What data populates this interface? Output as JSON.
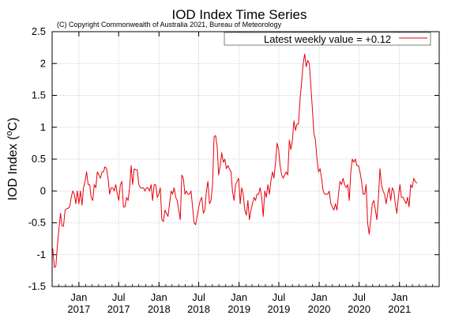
{
  "chart_data": {
    "type": "line",
    "title": "IOD Index Time Series",
    "subtitle": "(C) Copyright Commonwealth of Australia 2021, Bureau of Meteorology",
    "ylabel_main": "IOD Index (",
    "ylabel_sup": "o",
    "ylabel_unit": "C)",
    "xlabel": "",
    "x_range": [
      "2016-09-01",
      "2021-07-01"
    ],
    "ylim": [
      -1.5,
      2.5
    ],
    "y_ticks": [
      -1.5,
      -1,
      -0.5,
      0,
      0.5,
      1,
      1.5,
      2,
      2.5
    ],
    "y_tick_labels": [
      "-1.5",
      "-1",
      "-0.5",
      "0",
      "0.5",
      "1",
      "1.5",
      "2",
      "2.5"
    ],
    "x_ticks": [
      {
        "date": "2017-01-01",
        "month": "Jan",
        "year": "2017"
      },
      {
        "date": "2017-07-01",
        "month": "Jul",
        "year": "2017"
      },
      {
        "date": "2018-01-01",
        "month": "Jan",
        "year": "2018"
      },
      {
        "date": "2018-07-01",
        "month": "Jul",
        "year": "2018"
      },
      {
        "date": "2019-01-01",
        "month": "Jan",
        "year": "2019"
      },
      {
        "date": "2019-07-01",
        "month": "Jul",
        "year": "2019"
      },
      {
        "date": "2020-01-01",
        "month": "Jan",
        "year": "2020"
      },
      {
        "date": "2020-07-01",
        "month": "Jul",
        "year": "2020"
      },
      {
        "date": "2021-01-01",
        "month": "Jan",
        "year": "2021"
      }
    ],
    "grid": true,
    "legend_position": "top-right",
    "legend_label": "Latest weekly value = +0.12",
    "line_color": "#e8000b",
    "series": [
      {
        "values": [
          [
            "2016-09-04",
            -0.9
          ],
          [
            "2016-09-11",
            -1.2
          ],
          [
            "2016-09-18",
            -1.18
          ],
          [
            "2016-09-25",
            -0.85
          ],
          [
            "2016-10-02",
            -0.6
          ],
          [
            "2016-10-09",
            -0.35
          ],
          [
            "2016-10-16",
            -0.55
          ],
          [
            "2016-10-23",
            -0.55
          ],
          [
            "2016-10-30",
            -0.3
          ],
          [
            "2016-11-06",
            -0.28
          ],
          [
            "2016-11-13",
            -0.27
          ],
          [
            "2016-11-20",
            -0.25
          ],
          [
            "2016-11-27",
            -0.1
          ],
          [
            "2016-12-04",
            0.0
          ],
          [
            "2016-12-11",
            -0.05
          ],
          [
            "2016-12-18",
            -0.2
          ],
          [
            "2016-12-25",
            0.0
          ],
          [
            "2017-01-01",
            -0.2
          ],
          [
            "2017-01-08",
            0.0
          ],
          [
            "2017-01-15",
            -0.22
          ],
          [
            "2017-01-22",
            0.05
          ],
          [
            "2017-01-29",
            0.15
          ],
          [
            "2017-02-05",
            0.3
          ],
          [
            "2017-02-12",
            0.1
          ],
          [
            "2017-02-19",
            0.1
          ],
          [
            "2017-02-26",
            -0.1
          ],
          [
            "2017-03-05",
            -0.15
          ],
          [
            "2017-03-12",
            0.1
          ],
          [
            "2017-03-19",
            0.05
          ],
          [
            "2017-03-26",
            0.3
          ],
          [
            "2017-04-02",
            0.25
          ],
          [
            "2017-04-09",
            0.2
          ],
          [
            "2017-04-16",
            0.3
          ],
          [
            "2017-04-23",
            0.3
          ],
          [
            "2017-04-30",
            0.38
          ],
          [
            "2017-05-07",
            0.35
          ],
          [
            "2017-05-14",
            0.2
          ],
          [
            "2017-05-21",
            -0.05
          ],
          [
            "2017-05-28",
            0.05
          ],
          [
            "2017-06-04",
            0.05
          ],
          [
            "2017-06-11",
            0.0
          ],
          [
            "2017-06-18",
            0.1
          ],
          [
            "2017-06-25",
            -0.05
          ],
          [
            "2017-07-02",
            -0.15
          ],
          [
            "2017-07-09",
            0.1
          ],
          [
            "2017-07-16",
            0.15
          ],
          [
            "2017-07-23",
            -0.25
          ],
          [
            "2017-07-30",
            -0.25
          ],
          [
            "2017-08-06",
            -0.1
          ],
          [
            "2017-08-13",
            -0.15
          ],
          [
            "2017-08-20",
            0.05
          ],
          [
            "2017-08-27",
            0.4
          ],
          [
            "2017-09-03",
            0.1
          ],
          [
            "2017-09-10",
            0.35
          ],
          [
            "2017-09-17",
            0.33
          ],
          [
            "2017-09-24",
            0.33
          ],
          [
            "2017-10-01",
            0.1
          ],
          [
            "2017-10-08",
            0.05
          ],
          [
            "2017-10-15",
            0.05
          ],
          [
            "2017-10-22",
            0.05
          ],
          [
            "2017-10-29",
            0.0
          ],
          [
            "2017-11-05",
            0.05
          ],
          [
            "2017-11-12",
            0.05
          ],
          [
            "2017-11-19",
            0.0
          ],
          [
            "2017-11-26",
            0.1
          ],
          [
            "2017-12-03",
            -0.15
          ],
          [
            "2017-12-10",
            0.1
          ],
          [
            "2017-12-17",
            0.1
          ],
          [
            "2017-12-24",
            -0.1
          ],
          [
            "2017-12-31",
            -0.05
          ],
          [
            "2018-01-07",
            0.05
          ],
          [
            "2018-01-14",
            -0.45
          ],
          [
            "2018-01-21",
            -0.48
          ],
          [
            "2018-01-28",
            -0.3
          ],
          [
            "2018-02-04",
            -0.35
          ],
          [
            "2018-02-11",
            -0.4
          ],
          [
            "2018-02-18",
            -0.2
          ],
          [
            "2018-02-25",
            0.0
          ],
          [
            "2018-03-04",
            -0.05
          ],
          [
            "2018-03-11",
            0.05
          ],
          [
            "2018-03-18",
            -0.1
          ],
          [
            "2018-03-25",
            -0.15
          ],
          [
            "2018-04-01",
            -0.3
          ],
          [
            "2018-04-08",
            -0.45
          ],
          [
            "2018-04-15",
            0.25
          ],
          [
            "2018-04-22",
            0.2
          ],
          [
            "2018-04-29",
            -0.05
          ],
          [
            "2018-05-06",
            0.0
          ],
          [
            "2018-05-13",
            -0.05
          ],
          [
            "2018-05-20",
            -0.05
          ],
          [
            "2018-05-27",
            0.0
          ],
          [
            "2018-06-03",
            -0.25
          ],
          [
            "2018-06-10",
            -0.5
          ],
          [
            "2018-06-17",
            -0.53
          ],
          [
            "2018-06-24",
            -0.4
          ],
          [
            "2018-07-01",
            -0.25
          ],
          [
            "2018-07-08",
            -0.15
          ],
          [
            "2018-07-15",
            -0.1
          ],
          [
            "2018-07-22",
            -0.35
          ],
          [
            "2018-07-29",
            -0.3
          ],
          [
            "2018-08-05",
            0.0
          ],
          [
            "2018-08-12",
            0.15
          ],
          [
            "2018-08-19",
            -0.2
          ],
          [
            "2018-08-26",
            -0.15
          ],
          [
            "2018-09-02",
            0.1
          ],
          [
            "2018-09-09",
            0.85
          ],
          [
            "2018-09-16",
            0.87
          ],
          [
            "2018-09-23",
            0.7
          ],
          [
            "2018-09-30",
            0.25
          ],
          [
            "2018-10-07",
            0.4
          ],
          [
            "2018-10-14",
            0.6
          ],
          [
            "2018-10-21",
            0.45
          ],
          [
            "2018-10-28",
            0.5
          ],
          [
            "2018-11-04",
            0.35
          ],
          [
            "2018-11-11",
            0.4
          ],
          [
            "2018-11-18",
            0.35
          ],
          [
            "2018-11-25",
            0.3
          ],
          [
            "2018-12-02",
            0.0
          ],
          [
            "2018-12-09",
            -0.15
          ],
          [
            "2018-12-16",
            0.1
          ],
          [
            "2018-12-23",
            0.15
          ],
          [
            "2018-12-30",
            0.2
          ],
          [
            "2019-01-06",
            -0.2
          ],
          [
            "2019-01-13",
            0.05
          ],
          [
            "2019-01-20",
            -0.05
          ],
          [
            "2019-01-27",
            -0.3
          ],
          [
            "2019-02-03",
            -0.38
          ],
          [
            "2019-02-10",
            -0.15
          ],
          [
            "2019-02-17",
            -0.45
          ],
          [
            "2019-02-24",
            -0.3
          ],
          [
            "2019-03-03",
            -0.2
          ],
          [
            "2019-03-10",
            -0.1
          ],
          [
            "2019-03-17",
            -0.15
          ],
          [
            "2019-03-24",
            -0.05
          ],
          [
            "2019-03-31",
            -0.05
          ],
          [
            "2019-04-07",
            0.05
          ],
          [
            "2019-04-14",
            -0.1
          ],
          [
            "2019-04-21",
            -0.4
          ],
          [
            "2019-04-28",
            0.0
          ],
          [
            "2019-05-05",
            -0.1
          ],
          [
            "2019-05-12",
            0.1
          ],
          [
            "2019-05-19",
            -0.05
          ],
          [
            "2019-05-26",
            0.15
          ],
          [
            "2019-06-02",
            0.3
          ],
          [
            "2019-06-09",
            0.2
          ],
          [
            "2019-06-16",
            0.45
          ],
          [
            "2019-06-23",
            0.75
          ],
          [
            "2019-06-30",
            0.65
          ],
          [
            "2019-07-07",
            0.4
          ],
          [
            "2019-07-14",
            0.25
          ],
          [
            "2019-07-21",
            0.2
          ],
          [
            "2019-07-28",
            0.25
          ],
          [
            "2019-08-04",
            0.3
          ],
          [
            "2019-08-11",
            0.25
          ],
          [
            "2019-08-18",
            0.8
          ],
          [
            "2019-08-25",
            0.65
          ],
          [
            "2019-09-01",
            0.8
          ],
          [
            "2019-09-08",
            1.1
          ],
          [
            "2019-09-15",
            0.95
          ],
          [
            "2019-09-22",
            1.05
          ],
          [
            "2019-09-29",
            1.05
          ],
          [
            "2019-10-06",
            1.45
          ],
          [
            "2019-10-13",
            1.7
          ],
          [
            "2019-10-20",
            2.0
          ],
          [
            "2019-10-27",
            2.15
          ],
          [
            "2019-11-03",
            1.95
          ],
          [
            "2019-11-10",
            2.05
          ],
          [
            "2019-11-17",
            2.0
          ],
          [
            "2019-11-24",
            1.65
          ],
          [
            "2019-12-01",
            1.3
          ],
          [
            "2019-12-08",
            0.9
          ],
          [
            "2019-12-15",
            0.8
          ],
          [
            "2019-12-22",
            0.5
          ],
          [
            "2019-12-29",
            0.3
          ],
          [
            "2020-01-05",
            0.35
          ],
          [
            "2020-01-12",
            0.2
          ],
          [
            "2020-01-19",
            0.0
          ],
          [
            "2020-01-26",
            -0.05
          ],
          [
            "2020-02-02",
            -0.05
          ],
          [
            "2020-02-09",
            -0.05
          ],
          [
            "2020-02-16",
            0.0
          ],
          [
            "2020-02-23",
            -0.2
          ],
          [
            "2020-03-01",
            -0.25
          ],
          [
            "2020-03-08",
            -0.3
          ],
          [
            "2020-03-15",
            -0.2
          ],
          [
            "2020-03-22",
            -0.3
          ],
          [
            "2020-03-29",
            -0.05
          ],
          [
            "2020-04-05",
            0.15
          ],
          [
            "2020-04-12",
            0.1
          ],
          [
            "2020-04-19",
            0.2
          ],
          [
            "2020-04-26",
            0.1
          ],
          [
            "2020-05-03",
            0.05
          ],
          [
            "2020-05-10",
            0.1
          ],
          [
            "2020-05-17",
            -0.15
          ],
          [
            "2020-05-24",
            0.3
          ],
          [
            "2020-05-31",
            0.5
          ],
          [
            "2020-06-07",
            0.45
          ],
          [
            "2020-06-14",
            0.5
          ],
          [
            "2020-06-21",
            0.4
          ],
          [
            "2020-06-28",
            0.4
          ],
          [
            "2020-07-05",
            0.3
          ],
          [
            "2020-07-12",
            0.15
          ],
          [
            "2020-07-19",
            -0.05
          ],
          [
            "2020-07-26",
            -0.05
          ],
          [
            "2020-08-02",
            0.1
          ],
          [
            "2020-08-09",
            -0.5
          ],
          [
            "2020-08-16",
            -0.68
          ],
          [
            "2020-08-23",
            -0.45
          ],
          [
            "2020-08-30",
            -0.2
          ],
          [
            "2020-09-06",
            -0.15
          ],
          [
            "2020-09-13",
            -0.3
          ],
          [
            "2020-09-20",
            -0.45
          ],
          [
            "2020-09-27",
            -0.1
          ],
          [
            "2020-10-04",
            0.35
          ],
          [
            "2020-10-11",
            0.1
          ],
          [
            "2020-10-18",
            0.0
          ],
          [
            "2020-10-25",
            -0.05
          ],
          [
            "2020-11-01",
            -0.2
          ],
          [
            "2020-11-08",
            -0.05
          ],
          [
            "2020-11-15",
            0.05
          ],
          [
            "2020-11-22",
            -0.15
          ],
          [
            "2020-11-29",
            0.05
          ],
          [
            "2020-12-06",
            0.0
          ],
          [
            "2020-12-13",
            -0.2
          ],
          [
            "2020-12-20",
            -0.35
          ],
          [
            "2020-12-27",
            -0.1
          ],
          [
            "2021-01-03",
            0.1
          ],
          [
            "2021-01-10",
            -0.1
          ],
          [
            "2021-01-17",
            -0.1
          ],
          [
            "2021-01-24",
            -0.15
          ],
          [
            "2021-01-31",
            -0.2
          ],
          [
            "2021-02-07",
            -0.1
          ],
          [
            "2021-02-14",
            -0.25
          ],
          [
            "2021-02-21",
            0.1
          ],
          [
            "2021-02-28",
            0.05
          ],
          [
            "2021-03-07",
            0.2
          ],
          [
            "2021-03-14",
            0.15
          ],
          [
            "2021-03-21",
            0.12
          ]
        ]
      }
    ]
  }
}
